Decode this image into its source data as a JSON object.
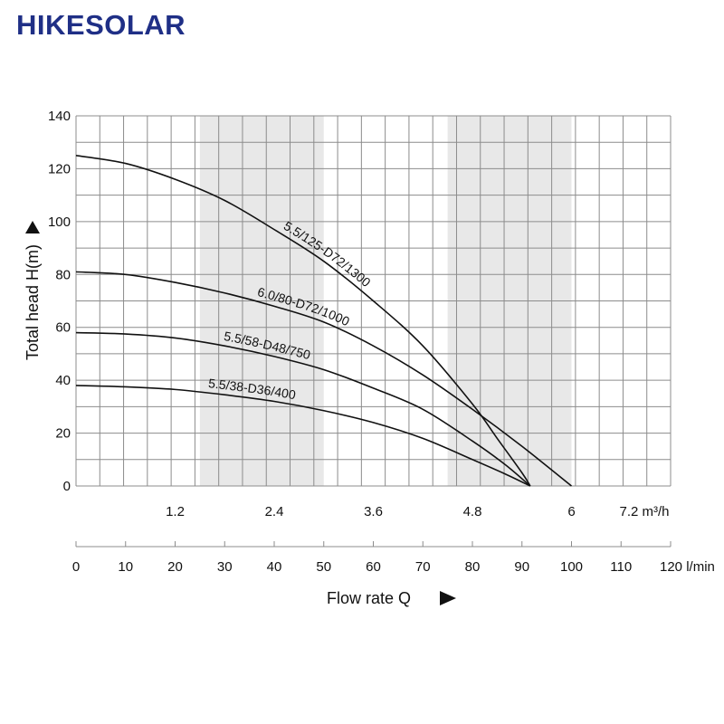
{
  "brand": "HIKESOLAR",
  "chart_data": {
    "type": "line",
    "title": "",
    "ylabel": "Total head H(m)",
    "xlabel": "Flow rate Q",
    "ylim": [
      0,
      140
    ],
    "xlim": [
      0,
      7.2
    ],
    "y_ticks": [
      "0",
      "20",
      "40",
      "60",
      "80",
      "100",
      "120",
      "140"
    ],
    "x_ticks_m3h": [
      {
        "v": 1.2,
        "label": "1.2"
      },
      {
        "v": 2.4,
        "label": "2.4"
      },
      {
        "v": 3.6,
        "label": "3.6"
      },
      {
        "v": 4.8,
        "label": "4.8"
      },
      {
        "v": 6.0,
        "label": "6"
      },
      {
        "v": 7.2,
        "label": "7.2 m³/h"
      }
    ],
    "x_ticks_lmin": [
      {
        "v": 0,
        "label": "0"
      },
      {
        "v": 10,
        "label": "10"
      },
      {
        "v": 20,
        "label": "20"
      },
      {
        "v": 30,
        "label": "30"
      },
      {
        "v": 40,
        "label": "40"
      },
      {
        "v": 50,
        "label": "50"
      },
      {
        "v": 60,
        "label": "60"
      },
      {
        "v": 70,
        "label": "70"
      },
      {
        "v": 80,
        "label": "80"
      },
      {
        "v": 90,
        "label": "90"
      },
      {
        "v": 100,
        "label": "100"
      },
      {
        "v": 110,
        "label": "110"
      },
      {
        "v": 120,
        "label": "120 l/min"
      }
    ],
    "shaded_ranges_m3h": [
      [
        1.5,
        3.0
      ],
      [
        4.5,
        6.0
      ]
    ],
    "grid": true,
    "series": [
      {
        "name": "5.5/125-D72/1300",
        "x": [
          0,
          0.6,
          1.2,
          1.8,
          2.4,
          3.0,
          3.6,
          4.2,
          4.8,
          5.1,
          5.4,
          5.5
        ],
        "y": [
          125,
          122,
          116,
          108,
          97,
          85,
          70,
          53,
          31,
          18,
          5,
          0
        ]
      },
      {
        "name": "6.0/80-D72/1000",
        "x": [
          0,
          0.6,
          1.2,
          1.8,
          2.4,
          3.0,
          3.6,
          4.2,
          4.8,
          5.4,
          6.0
        ],
        "y": [
          81,
          80,
          77,
          73,
          68,
          62,
          53,
          42,
          29,
          15,
          0
        ]
      },
      {
        "name": "5.5/58-D48/750",
        "x": [
          0,
          0.6,
          1.2,
          1.8,
          2.4,
          3.0,
          3.6,
          4.2,
          4.8,
          5.2,
          5.5
        ],
        "y": [
          58,
          57.5,
          56,
          53,
          49,
          44,
          37,
          29,
          17,
          8,
          0
        ]
      },
      {
        "name": "5.5/38-D36/400",
        "x": [
          0,
          0.6,
          1.2,
          1.8,
          2.4,
          3.0,
          3.6,
          4.2,
          4.8,
          5.2,
          5.5
        ],
        "y": [
          38,
          37.5,
          36.5,
          34.5,
          32,
          28.5,
          24,
          18,
          10,
          4.5,
          0
        ]
      }
    ]
  }
}
